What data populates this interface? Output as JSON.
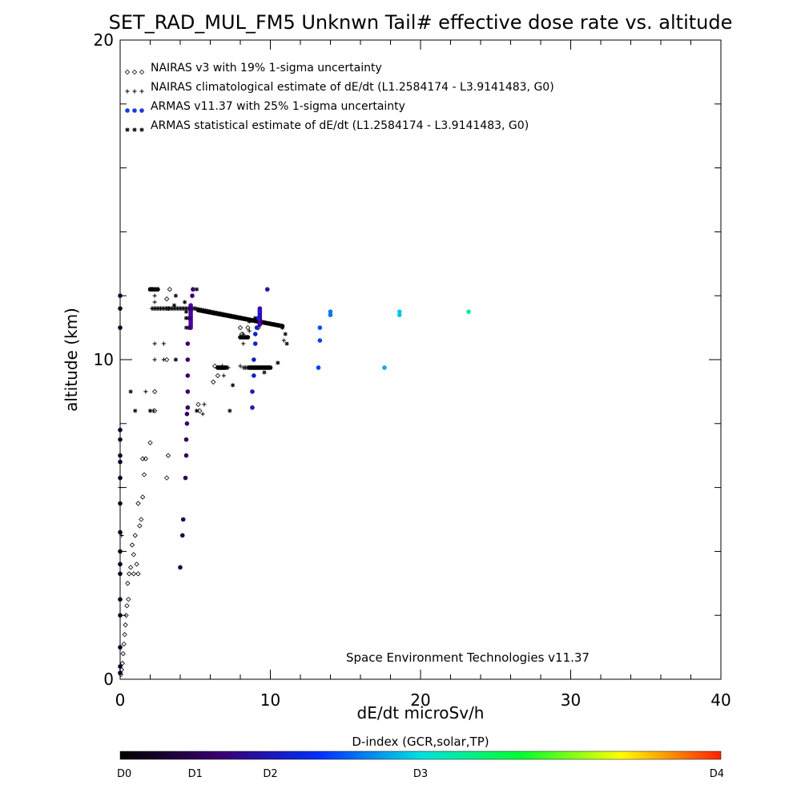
{
  "chart_data": {
    "type": "scatter",
    "title": "SET_RAD_MUL_FM5 Unknwn Tail#  effective dose rate vs. altitude",
    "xlabel": "dE/dt microSv/h",
    "ylabel": "altitude (km)",
    "xlim": [
      0,
      40
    ],
    "ylim": [
      0,
      20
    ],
    "x_ticks": [
      0,
      10,
      20,
      30,
      40
    ],
    "y_ticks": [
      0,
      10,
      20
    ],
    "x_minor_step": 2,
    "y_minor_step": 2,
    "grid": false,
    "legend_position": "top-left",
    "legend": [
      {
        "marker": "diamond",
        "label": "NAIRAS v3 with 19% 1-sigma uncertainty"
      },
      {
        "marker": "plus",
        "label": "NAIRAS climatological estimate of dE/dt (L1.2584174 - L3.9141483, G0)"
      },
      {
        "marker": "dot",
        "label": "ARMAS v11.37 with 25% 1-sigma uncertainty"
      },
      {
        "marker": "asterisk",
        "label": "ARMAS statistical estimate of dE/dt (L1.2584174 - L3.9141483, G0)"
      }
    ],
    "annotation": "Space Environment Technologies v11.37",
    "colorbar": {
      "title": "D-index (GCR,solar,TP)",
      "labels": [
        "D0",
        "D1",
        "D2",
        "D3",
        "D4"
      ],
      "label_positions": [
        0,
        0.125,
        0.25,
        0.5,
        1.0
      ],
      "colors": [
        "#000000",
        "#3a0070",
        "#0030ff",
        "#00e0e0",
        "#00ff30",
        "#ffff00",
        "#ff2000"
      ]
    },
    "series": [
      {
        "name": "NAIRAS v3 with 19% 1-sigma uncertainty",
        "marker": "diamond",
        "color": "#000000",
        "points": [
          [
            0.05,
            0.15
          ],
          [
            0.1,
            0.3
          ],
          [
            0.15,
            0.5
          ],
          [
            0.2,
            0.8
          ],
          [
            0.25,
            1.1
          ],
          [
            0.3,
            1.4
          ],
          [
            0.35,
            1.7
          ],
          [
            0.4,
            2.0
          ],
          [
            0.45,
            2.3
          ],
          [
            0.55,
            2.5
          ],
          [
            0.5,
            3.0
          ],
          [
            0.6,
            3.3
          ],
          [
            0.7,
            3.5
          ],
          [
            0.9,
            3.9
          ],
          [
            0.8,
            4.2
          ],
          [
            0.9,
            3.3
          ],
          [
            1.1,
            3.6
          ],
          [
            1.2,
            3.3
          ],
          [
            1.0,
            4.5
          ],
          [
            1.3,
            4.8
          ],
          [
            1.4,
            5.0
          ],
          [
            1.2,
            5.5
          ],
          [
            1.5,
            5.7
          ],
          [
            1.6,
            6.4
          ],
          [
            1.5,
            6.9
          ],
          [
            1.7,
            6.9
          ],
          [
            2.0,
            7.4
          ],
          [
            2.3,
            8.4
          ],
          [
            2.3,
            9.0
          ],
          [
            3.1,
            6.3
          ],
          [
            3.2,
            7.0
          ],
          [
            2.1,
            12.2
          ],
          [
            3.3,
            12.2
          ],
          [
            3.1,
            11.9
          ],
          [
            3.2,
            11.6
          ],
          [
            3.1,
            10.0
          ],
          [
            5.2,
            8.6
          ],
          [
            5.3,
            8.4
          ],
          [
            6.3,
            9.8
          ],
          [
            6.5,
            9.5
          ],
          [
            6.2,
            9.3
          ],
          [
            8.0,
            11.0
          ],
          [
            8.1,
            10.8
          ],
          [
            8.5,
            11.0
          ],
          [
            9.2,
            11.0
          ]
        ]
      },
      {
        "name": "NAIRAS climatological estimate of dE/dt (L1.2584174 - L3.9141483, G0)",
        "marker": "plus",
        "color": "#000000",
        "points": [
          [
            0.0,
            6.0
          ],
          [
            0.1,
            4.5
          ],
          [
            1.7,
            9.0
          ],
          [
            2.3,
            12.0
          ],
          [
            2.3,
            11.8
          ],
          [
            2.3,
            10.5
          ],
          [
            2.3,
            10.0
          ],
          [
            2.9,
            10.0
          ],
          [
            2.9,
            10.5
          ],
          [
            2.2,
            8.4
          ],
          [
            5.5,
            8.3
          ],
          [
            5.6,
            8.6
          ],
          [
            6.8,
            9.8
          ],
          [
            6.9,
            9.5
          ],
          [
            8.2,
            10.8
          ],
          [
            8.2,
            10.5
          ],
          [
            8.0,
            9.8
          ],
          [
            8.6,
            10.9
          ],
          [
            10.9,
            10.6
          ]
        ]
      },
      {
        "name": "ARMAS statistical estimate of dE/dt (L1.2584174 - L3.9141483, G0)",
        "marker": "asterisk",
        "color": "#000000",
        "points": [
          [
            0.7,
            9.0
          ],
          [
            1.0,
            8.4
          ],
          [
            2.0,
            8.4
          ],
          [
            2.3,
            12.2
          ],
          [
            3.6,
            11.7
          ],
          [
            3.7,
            12.0
          ],
          [
            3.7,
            10.0
          ],
          [
            4.3,
            11.8
          ],
          [
            4.4,
            11.5
          ],
          [
            4.4,
            11.3
          ],
          [
            4.4,
            11.0
          ],
          [
            5.1,
            8.4
          ],
          [
            5.1,
            12.2
          ],
          [
            7.3,
            8.4
          ],
          [
            7.5,
            9.2
          ],
          [
            9.6,
            9.6
          ],
          [
            10.5,
            9.9
          ],
          [
            10.8,
            11.0
          ],
          [
            11.0,
            10.8
          ],
          [
            11.1,
            10.5
          ],
          [
            9.0,
            11.3
          ],
          [
            8.6,
            11.2
          ]
        ]
      },
      {
        "name": "ARMAS v11.37 with 25% 1-sigma uncertainty",
        "marker": "dot",
        "color_by_dindex": true,
        "points": [
          [
            0.0,
            0.2
          ],
          [
            0.0,
            0.4
          ],
          [
            0.0,
            1.0
          ],
          [
            0.0,
            2.0
          ],
          [
            0.0,
            2.5
          ],
          [
            0.0,
            3.3
          ],
          [
            0.0,
            3.6
          ],
          [
            0.0,
            4.0
          ],
          [
            0.0,
            4.6
          ],
          [
            0.0,
            5.5
          ],
          [
            0.0,
            6.3
          ],
          [
            0.0,
            6.8
          ],
          [
            0.0,
            7.0
          ],
          [
            0.0,
            7.5
          ],
          [
            0.0,
            7.8
          ],
          [
            0.0,
            11.0
          ],
          [
            0.0,
            11.6
          ],
          [
            0.0,
            12.0
          ],
          [
            4.0,
            3.5
          ],
          [
            4.15,
            4.5
          ],
          [
            4.2,
            5.0
          ],
          [
            4.35,
            6.3
          ],
          [
            4.4,
            7.0
          ],
          [
            4.4,
            7.5
          ],
          [
            4.45,
            8.0
          ],
          [
            4.45,
            8.3
          ],
          [
            4.5,
            8.5
          ],
          [
            4.5,
            9.0
          ],
          [
            4.5,
            9.5
          ],
          [
            4.5,
            10.0
          ],
          [
            4.5,
            10.5
          ],
          [
            4.6,
            11.0
          ],
          [
            4.6,
            11.3
          ],
          [
            4.7,
            11.6
          ],
          [
            4.8,
            12.0
          ],
          [
            4.85,
            12.2
          ],
          [
            9.8,
            12.2
          ],
          [
            8.8,
            8.5
          ],
          [
            8.8,
            9.0
          ],
          [
            8.9,
            9.5
          ],
          [
            8.9,
            10.0
          ],
          [
            9.0,
            10.5
          ],
          [
            9.0,
            10.8
          ],
          [
            9.1,
            11.0
          ],
          [
            9.2,
            11.3
          ],
          [
            9.3,
            11.5
          ],
          [
            13.2,
            9.75
          ],
          [
            13.3,
            10.6
          ],
          [
            13.3,
            11.0
          ],
          [
            14.0,
            11.4
          ],
          [
            14.0,
            11.5
          ],
          [
            17.6,
            9.75
          ],
          [
            18.6,
            11.4
          ],
          [
            18.6,
            11.5
          ],
          [
            23.2,
            11.5
          ]
        ],
        "dindex": [
          0.2,
          0.2,
          0.2,
          0.2,
          0.2,
          0.2,
          0.2,
          0.2,
          0.2,
          0.2,
          0.2,
          0.2,
          0.2,
          0.2,
          0.2,
          0.2,
          0.2,
          0.2,
          0.35,
          0.4,
          0.45,
          0.5,
          0.55,
          0.55,
          0.6,
          0.6,
          0.6,
          0.6,
          0.62,
          0.62,
          0.65,
          0.65,
          0.65,
          0.7,
          0.7,
          0.72,
          0.95,
          1.0,
          1.0,
          1.05,
          1.05,
          1.1,
          1.1,
          1.1,
          1.15,
          1.15,
          1.4,
          1.4,
          1.45,
          1.6,
          1.6,
          1.8,
          1.9,
          1.9,
          2.2
        ]
      }
    ],
    "dense_traces": [
      {
        "marker": "plus",
        "color": "#000000",
        "x": [
          2.1,
          5.0
        ],
        "y": [
          11.6,
          11.6
        ],
        "n": 40
      },
      {
        "marker": "plus",
        "color": "#000000",
        "x": [
          5.0,
          10.8
        ],
        "y": [
          11.6,
          11.05
        ],
        "n": 70
      },
      {
        "marker": "plus",
        "color": "#000000",
        "x": [
          6.5,
          7.2
        ],
        "y": [
          9.75,
          9.75
        ],
        "n": 12
      },
      {
        "marker": "plus",
        "color": "#000000",
        "x": [
          8.2,
          10.0
        ],
        "y": [
          9.75,
          9.75
        ],
        "n": 24
      },
      {
        "marker": "dot",
        "color": "#000000",
        "x": [
          5.2,
          10.8
        ],
        "y": [
          11.55,
          11.05
        ],
        "n": 60
      },
      {
        "marker": "dot",
        "color": "#000000",
        "x": [
          2.0,
          2.5
        ],
        "y": [
          12.2,
          12.2
        ],
        "n": 4
      },
      {
        "marker": "dot",
        "color": "#000000",
        "x": [
          8.0,
          8.5
        ],
        "y": [
          10.7,
          10.7
        ],
        "n": 5
      },
      {
        "marker": "dot",
        "color": "#000000",
        "x": [
          6.5,
          7.0
        ],
        "y": [
          9.75,
          9.75
        ],
        "n": 6
      },
      {
        "marker": "dot",
        "color": "#000000",
        "x": [
          8.6,
          10.0
        ],
        "y": [
          9.75,
          9.75
        ],
        "n": 14
      },
      {
        "marker": "dot",
        "color": "#4a00a0",
        "x": [
          9.3,
          9.3
        ],
        "y": [
          11.1,
          11.6
        ],
        "n": 10
      },
      {
        "marker": "dot",
        "color": "#4a00a0",
        "x": [
          4.7,
          4.7
        ],
        "y": [
          11.0,
          11.7
        ],
        "n": 12
      }
    ]
  }
}
